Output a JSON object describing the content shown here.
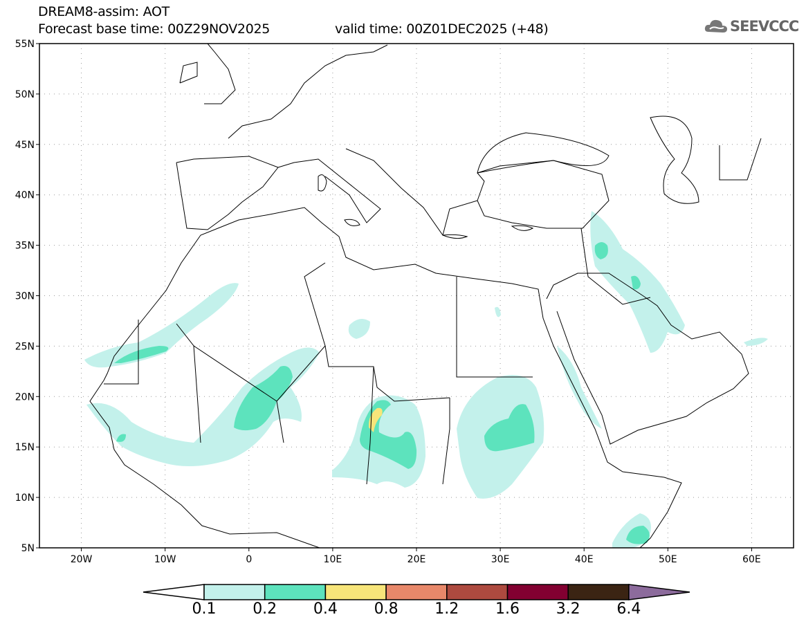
{
  "header": {
    "title": "DREAM8-assim: AOT",
    "base_time": "Forecast base time: 00Z29NOV2025",
    "valid_time": "valid time: 00Z01DEC2025 (+48)",
    "logo_text": "SEEVCCC"
  },
  "map": {
    "lat_labels": [
      "55N",
      "50N",
      "45N",
      "40N",
      "35N",
      "30N",
      "25N",
      "20N",
      "15N",
      "10N",
      "5N"
    ],
    "lon_labels": [
      "20W",
      "10W",
      "0",
      "10E",
      "20E",
      "30E",
      "40E",
      "50E",
      "60E"
    ],
    "lon_range": [
      -25,
      65
    ],
    "lat_range": [
      5,
      55
    ]
  },
  "colorbar": {
    "labels": [
      "0.1",
      "0.2",
      "0.4",
      "0.8",
      "1.2",
      "1.6",
      "3.2",
      "6.4"
    ],
    "colors": [
      "#ffffff",
      "#c3f1eb",
      "#5de3bd",
      "#f7e57a",
      "#e8886a",
      "#ad4a3f",
      "#820031",
      "#3b2413",
      "#8c6b9c"
    ]
  }
}
